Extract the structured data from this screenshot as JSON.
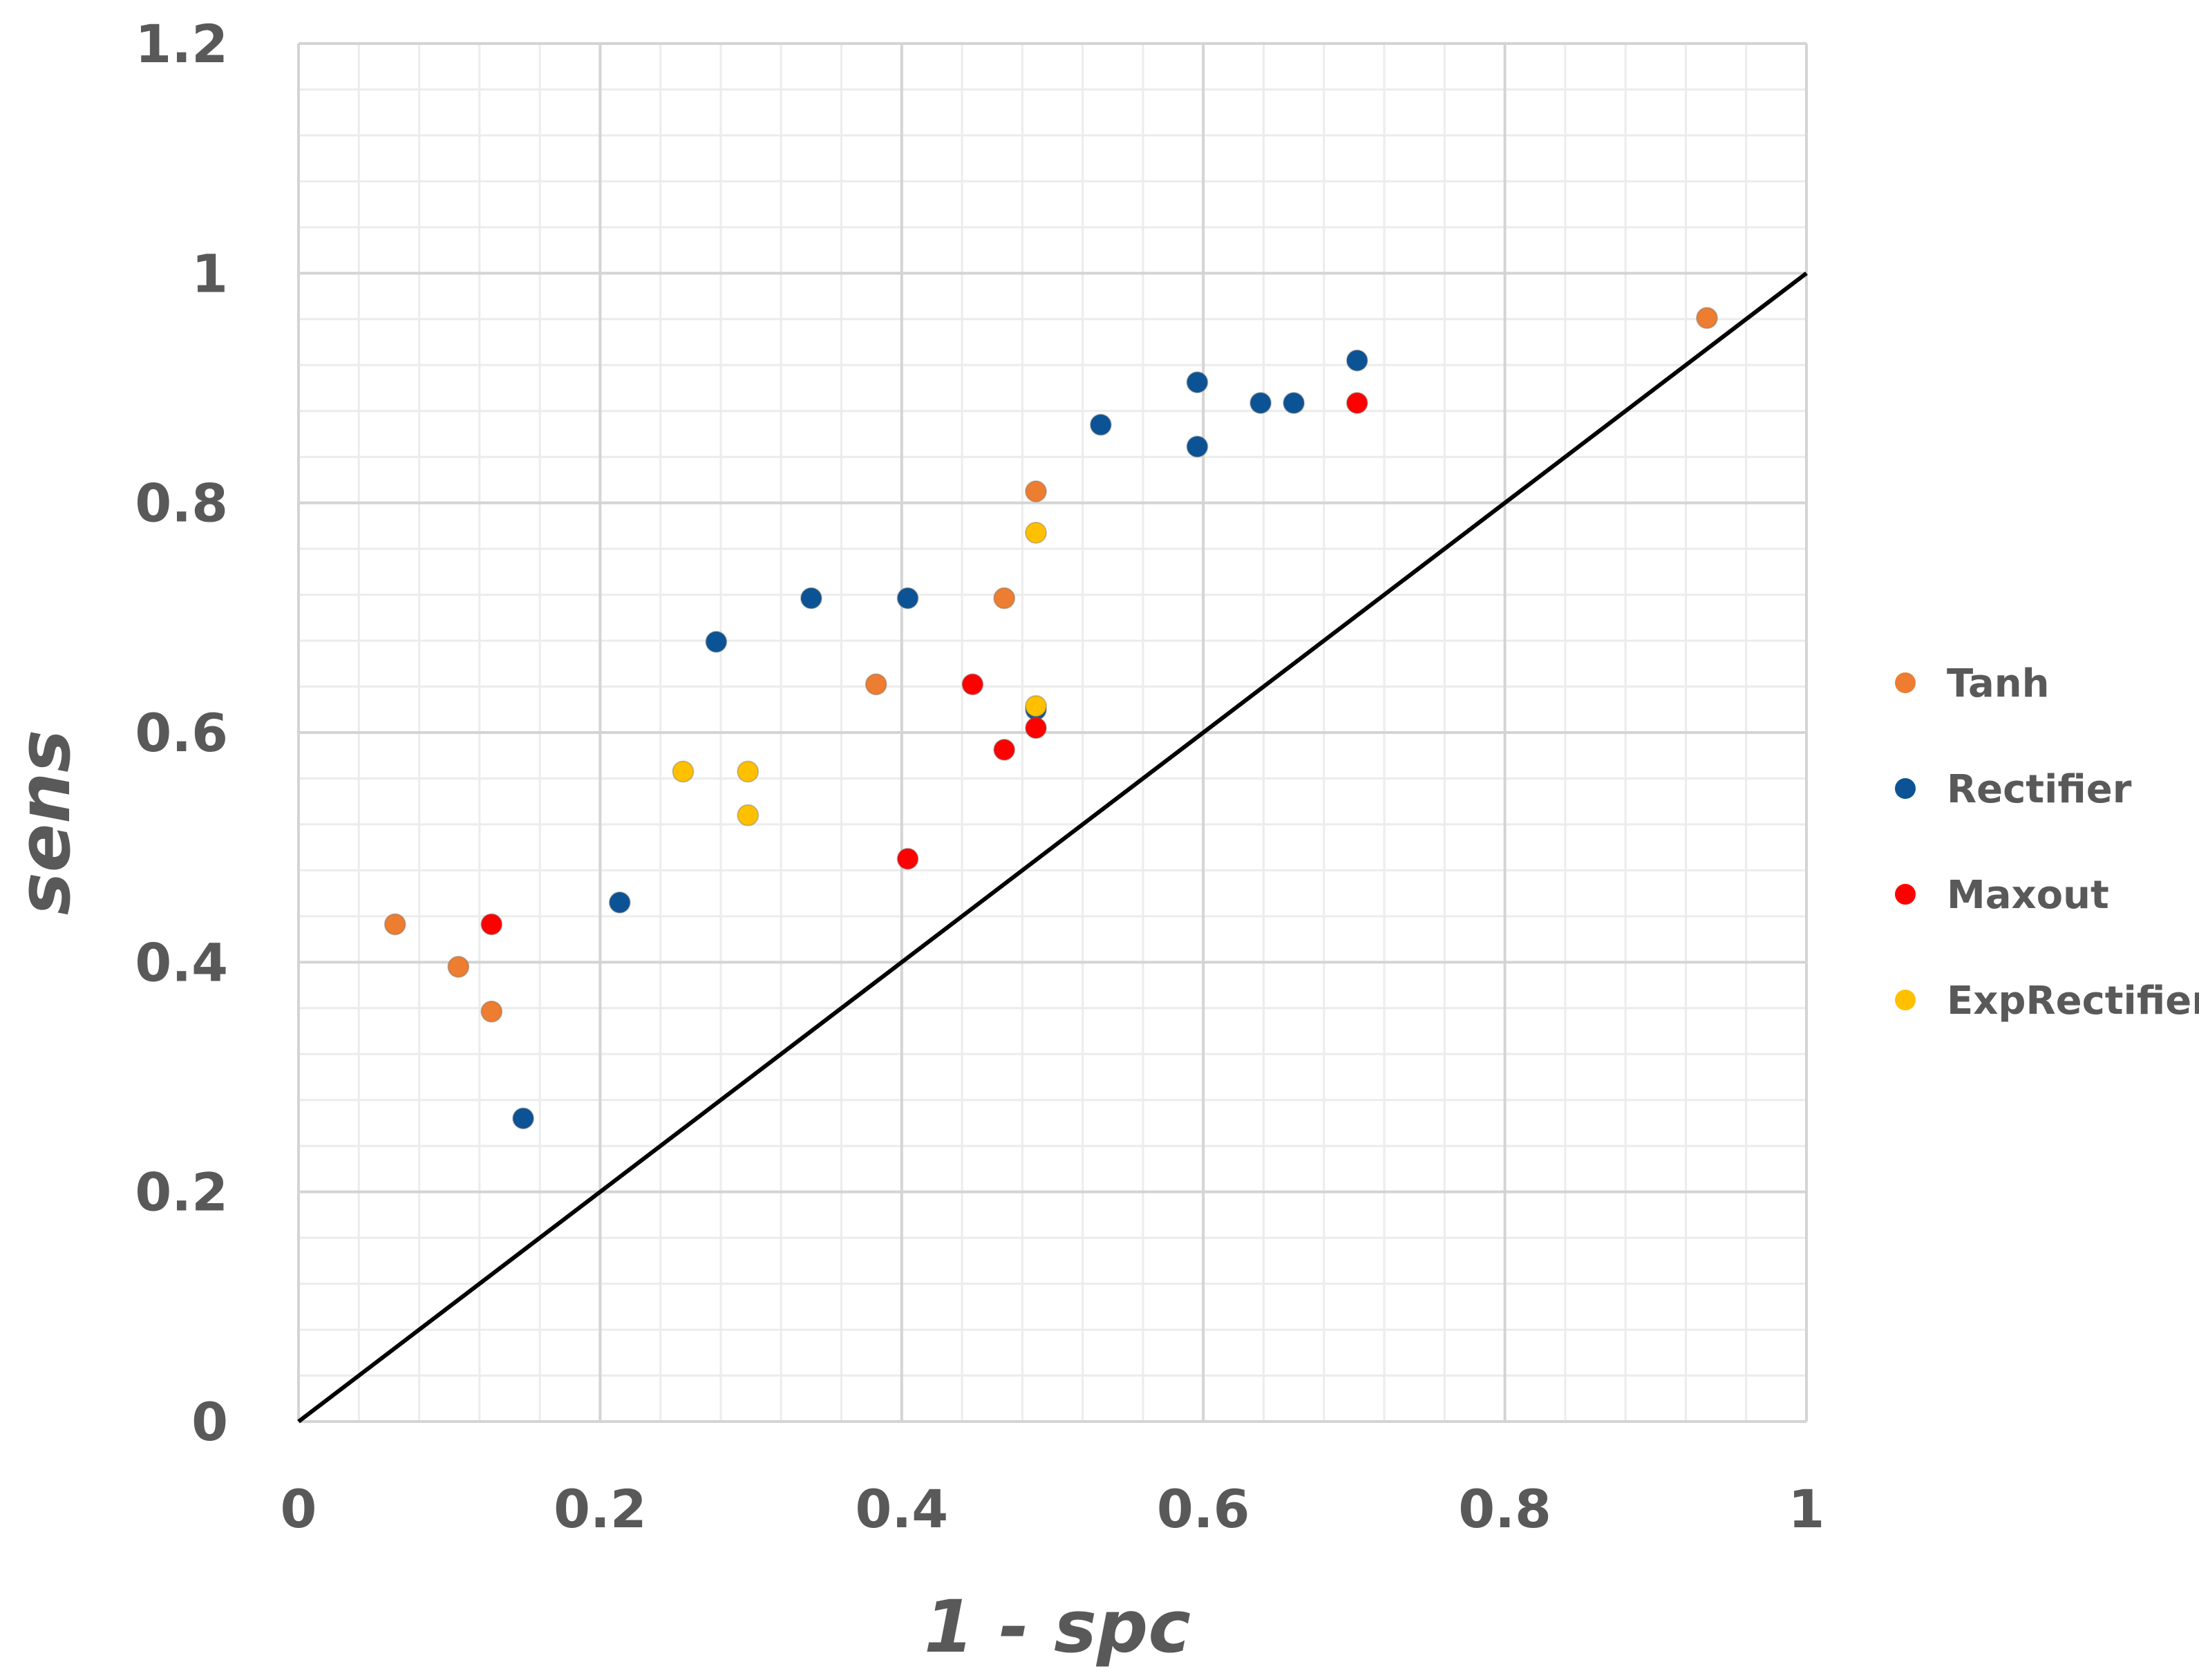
{
  "chart_data": {
    "type": "scatter",
    "title": "",
    "xlabel": "1 - spc",
    "ylabel": "sens",
    "xlim": [
      0,
      1
    ],
    "ylim": [
      0,
      1.2
    ],
    "x_ticks": [
      "0",
      "0.2",
      "0.4",
      "0.6",
      "0.8",
      "1"
    ],
    "y_ticks": [
      "0",
      "0.2",
      "0.4",
      "0.6",
      "0.8",
      "1",
      "1.2"
    ],
    "grid": true,
    "legend_position": "right",
    "reference_line": {
      "name": "diagonal",
      "x": [
        0,
        1
      ],
      "y": [
        0,
        1
      ],
      "color": "#000000"
    },
    "series": [
      {
        "name": "Tanh",
        "color": "#ED7D31",
        "points": [
          [
            0.064,
            0.433
          ],
          [
            0.106,
            0.396
          ],
          [
            0.128,
            0.357
          ],
          [
            0.383,
            0.642
          ],
          [
            0.468,
            0.717
          ],
          [
            0.489,
            0.81
          ],
          [
            0.934,
            0.961
          ]
        ]
      },
      {
        "name": "Rectifier",
        "color": "#0B5394",
        "points": [
          [
            0.149,
            0.264
          ],
          [
            0.213,
            0.452
          ],
          [
            0.277,
            0.679
          ],
          [
            0.34,
            0.717
          ],
          [
            0.404,
            0.717
          ],
          [
            0.489,
            0.62
          ],
          [
            0.532,
            0.868
          ],
          [
            0.596,
            0.905
          ],
          [
            0.596,
            0.849
          ],
          [
            0.638,
            0.887
          ],
          [
            0.66,
            0.887
          ],
          [
            0.702,
            0.924
          ]
        ]
      },
      {
        "name": "Maxout",
        "color": "#FF0000",
        "points": [
          [
            0.128,
            0.433
          ],
          [
            0.404,
            0.49
          ],
          [
            0.447,
            0.642
          ],
          [
            0.468,
            0.585
          ],
          [
            0.489,
            0.604
          ],
          [
            0.702,
            0.887
          ]
        ]
      },
      {
        "name": "ExpRectifier",
        "color": "#FFC000",
        "points": [
          [
            0.255,
            0.566
          ],
          [
            0.298,
            0.566
          ],
          [
            0.298,
            0.528
          ],
          [
            0.489,
            0.774
          ],
          [
            0.489,
            0.623
          ]
        ]
      }
    ]
  }
}
